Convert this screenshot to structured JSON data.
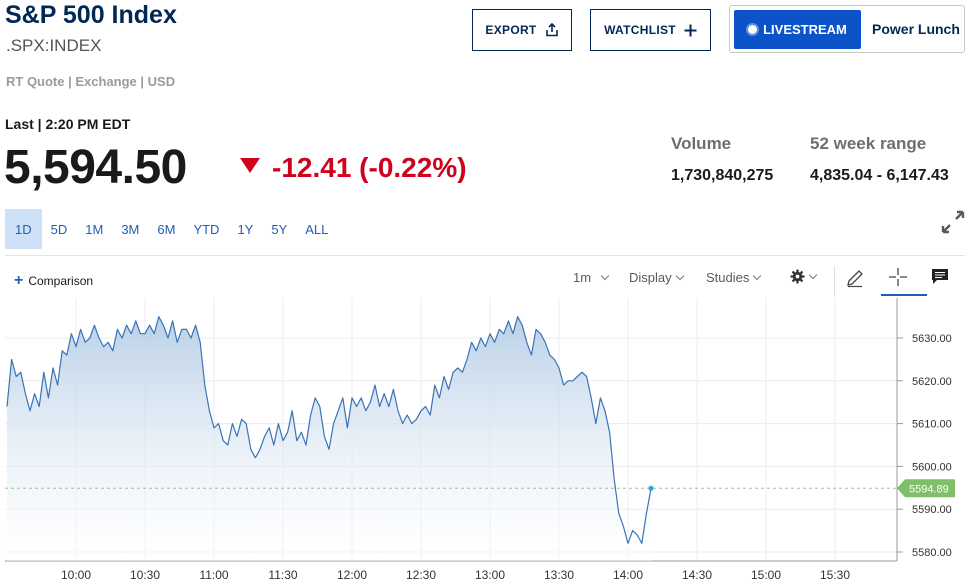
{
  "header": {
    "title": "S&P 500 Index",
    "symbol": ".SPX:INDEX",
    "quote_meta": "RT Quote | Exchange | USD",
    "export_label": "EXPORT",
    "watchlist_label": "WATCHLIST",
    "livestream_label": "LIVESTREAM",
    "show_name": "Power Lunch"
  },
  "quote": {
    "last_label": "Last | 2:20 PM EDT",
    "price": "5,594.50",
    "change": "-12.41 (-0.22%)",
    "direction": "down",
    "down_color": "#d0021b"
  },
  "stats": {
    "volume_label": "Volume",
    "volume_value": "1,730,840,275",
    "range_label": "52 week range",
    "range_value": "4,835.04 - 6,147.43"
  },
  "range_tabs": [
    "1D",
    "5D",
    "1M",
    "3M",
    "6M",
    "YTD",
    "1Y",
    "5Y",
    "ALL"
  ],
  "active_range": "1D",
  "toolbar": {
    "comparison_label": "Comparison",
    "interval_label": "1m",
    "display_label": "Display",
    "studies_label": "Studies"
  },
  "chart_data": {
    "type": "area",
    "x_ticks": [
      "10:00",
      "10:30",
      "11:00",
      "11:30",
      "12:00",
      "12:30",
      "13:00",
      "13:30",
      "14:00",
      "14:30",
      "15:00",
      "15:30"
    ],
    "y_ticks": [
      "5630.00",
      "5620.00",
      "5610.00",
      "5600.00",
      "5590.00",
      "5580.00"
    ],
    "ylim": [
      5578,
      5639
    ],
    "last_value_label": "5594.89",
    "line_color": "#3a73b8",
    "fill_color": "#b5cde6",
    "last_marker_color": "#7fbf6a",
    "grid": true,
    "series": [
      {
        "values": [
          [
            "09:30",
            5614
          ],
          [
            "09:32",
            5625
          ],
          [
            "09:34",
            5621
          ],
          [
            "09:36",
            5622
          ],
          [
            "09:38",
            5617
          ],
          [
            "09:40",
            5613
          ],
          [
            "09:42",
            5617
          ],
          [
            "09:44",
            5614
          ],
          [
            "09:46",
            5622
          ],
          [
            "09:48",
            5616
          ],
          [
            "09:50",
            5623
          ],
          [
            "09:52",
            5619
          ],
          [
            "09:54",
            5627
          ],
          [
            "09:56",
            5626
          ],
          [
            "09:58",
            5631
          ],
          [
            "10:00",
            5628
          ],
          [
            "10:02",
            5632
          ],
          [
            "10:04",
            5629
          ],
          [
            "10:06",
            5630
          ],
          [
            "10:08",
            5633
          ],
          [
            "10:10",
            5630
          ],
          [
            "10:12",
            5628
          ],
          [
            "10:14",
            5629
          ],
          [
            "10:16",
            5627
          ],
          [
            "10:18",
            5632
          ],
          [
            "10:20",
            5630
          ],
          [
            "10:22",
            5633
          ],
          [
            "10:24",
            5631
          ],
          [
            "10:26",
            5634
          ],
          [
            "10:28",
            5631
          ],
          [
            "10:30",
            5631
          ],
          [
            "10:32",
            5633
          ],
          [
            "10:34",
            5631
          ],
          [
            "10:36",
            5635
          ],
          [
            "10:38",
            5633
          ],
          [
            "10:40",
            5630
          ],
          [
            "10:42",
            5634
          ],
          [
            "10:44",
            5629
          ],
          [
            "10:46",
            5632
          ],
          [
            "10:48",
            5632
          ],
          [
            "10:50",
            5630
          ],
          [
            "10:52",
            5633
          ],
          [
            "10:54",
            5629
          ],
          [
            "10:56",
            5619
          ],
          [
            "10:58",
            5613
          ],
          [
            "11:00",
            5609
          ],
          [
            "11:02",
            5610
          ],
          [
            "11:04",
            5606
          ],
          [
            "11:06",
            5605
          ],
          [
            "11:08",
            5610
          ],
          [
            "11:10",
            5607
          ],
          [
            "11:12",
            5611
          ],
          [
            "11:14",
            5610
          ],
          [
            "11:16",
            5604
          ],
          [
            "11:18",
            5602
          ],
          [
            "11:20",
            5604
          ],
          [
            "11:22",
            5607
          ],
          [
            "11:24",
            5609
          ],
          [
            "11:26",
            5605
          ],
          [
            "11:28",
            5610
          ],
          [
            "11:30",
            5606
          ],
          [
            "11:32",
            5608
          ],
          [
            "11:34",
            5613
          ],
          [
            "11:36",
            5606
          ],
          [
            "11:38",
            5608
          ],
          [
            "11:40",
            5605
          ],
          [
            "11:42",
            5612
          ],
          [
            "11:44",
            5616
          ],
          [
            "11:46",
            5614
          ],
          [
            "11:48",
            5607
          ],
          [
            "11:50",
            5604
          ],
          [
            "11:52",
            5610
          ],
          [
            "11:54",
            5613
          ],
          [
            "11:56",
            5616
          ],
          [
            "11:58",
            5609
          ],
          [
            "12:00",
            5616
          ],
          [
            "12:02",
            5614
          ],
          [
            "12:04",
            5616
          ],
          [
            "12:06",
            5613
          ],
          [
            "12:08",
            5615
          ],
          [
            "12:10",
            5619
          ],
          [
            "12:12",
            5614
          ],
          [
            "12:14",
            5617
          ],
          [
            "12:16",
            5614
          ],
          [
            "12:18",
            5618
          ],
          [
            "12:20",
            5613
          ],
          [
            "12:22",
            5610
          ],
          [
            "12:24",
            5612
          ],
          [
            "12:26",
            5610
          ],
          [
            "12:28",
            5611
          ],
          [
            "12:30",
            5613
          ],
          [
            "12:32",
            5614
          ],
          [
            "12:34",
            5612
          ],
          [
            "12:36",
            5619
          ],
          [
            "12:38",
            5616
          ],
          [
            "12:40",
            5621
          ],
          [
            "12:42",
            5618
          ],
          [
            "12:44",
            5622
          ],
          [
            "12:46",
            5623
          ],
          [
            "12:48",
            5622
          ],
          [
            "12:50",
            5625
          ],
          [
            "12:52",
            5629
          ],
          [
            "12:54",
            5627
          ],
          [
            "12:56",
            5630
          ],
          [
            "12:58",
            5628
          ],
          [
            "13:00",
            5631
          ],
          [
            "13:02",
            5629
          ],
          [
            "13:04",
            5632
          ],
          [
            "13:06",
            5631
          ],
          [
            "13:08",
            5634
          ],
          [
            "13:10",
            5631
          ],
          [
            "13:12",
            5635
          ],
          [
            "13:14",
            5633
          ],
          [
            "13:16",
            5629
          ],
          [
            "13:18",
            5626
          ],
          [
            "13:20",
            5632
          ],
          [
            "13:22",
            5631
          ],
          [
            "13:24",
            5629
          ],
          [
            "13:26",
            5626
          ],
          [
            "13:28",
            5625
          ],
          [
            "13:30",
            5623
          ],
          [
            "13:32",
            5619
          ],
          [
            "13:34",
            5620
          ],
          [
            "13:36",
            5620
          ],
          [
            "13:38",
            5621
          ],
          [
            "13:40",
            5622
          ],
          [
            "13:42",
            5621
          ],
          [
            "13:44",
            5616
          ],
          [
            "13:46",
            5610
          ],
          [
            "13:48",
            5616
          ],
          [
            "13:50",
            5613
          ],
          [
            "13:52",
            5608
          ],
          [
            "13:54",
            5597
          ],
          [
            "13:56",
            5589
          ],
          [
            "13:58",
            5586
          ],
          [
            "14:00",
            5582
          ],
          [
            "14:02",
            5585
          ],
          [
            "14:04",
            5584
          ],
          [
            "14:06",
            5582
          ],
          [
            "14:08",
            5589
          ],
          [
            "14:10",
            5594.89
          ]
        ]
      }
    ]
  }
}
